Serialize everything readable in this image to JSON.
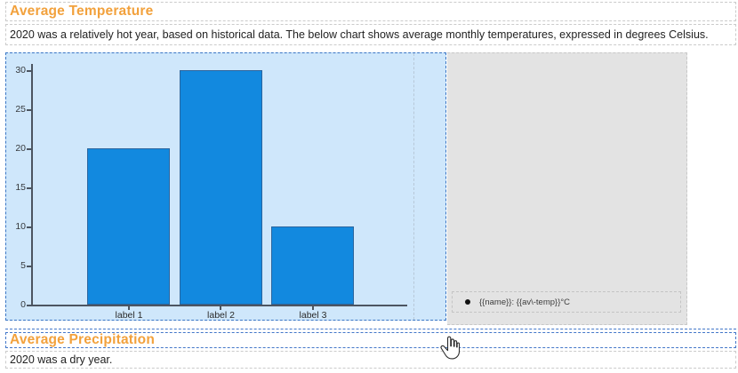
{
  "document": {
    "sections": {
      "temperature": {
        "heading": "Average Temperature",
        "paragraph": "2020 was a relatively hot year, based on historical data. The below chart shows average monthly temperatures, expressed in degrees Celsius."
      },
      "precipitation": {
        "heading": "Average Precipitation",
        "paragraph": "2020 was a dry year."
      }
    }
  },
  "chart_data": {
    "type": "bar",
    "categories": [
      "label 1",
      "label 2",
      "label 3"
    ],
    "values": [
      20,
      30,
      10
    ],
    "yticks": [
      0,
      5,
      10,
      15,
      20,
      25,
      30
    ],
    "ylim": [
      0,
      30
    ],
    "title": "",
    "xlabel": "",
    "ylabel": "",
    "grid": false,
    "legend": {
      "position": "bottom-right",
      "entries": [
        "{{name}}: {{av\\-temp}}°C"
      ]
    },
    "colors": {
      "bar_fill": "#1289df",
      "bar_border": "#2b659e",
      "plot_background": "#cfe7fb",
      "panel_background": "#e3e3e3",
      "axis": "#4c5561"
    }
  },
  "ui": {
    "heading_color": "#f2a13c",
    "selection_border_color": "#4377c9",
    "block_border_color": "#cbcbcb",
    "cursor_icon": "hand-pointer"
  }
}
